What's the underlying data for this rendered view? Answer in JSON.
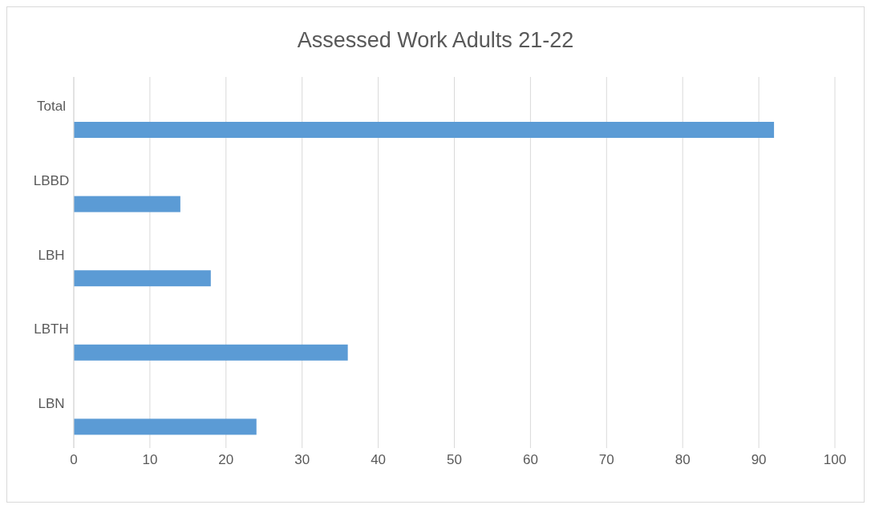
{
  "chart_data": {
    "type": "bar",
    "orientation": "horizontal",
    "title": "Assessed Work Adults 21-22",
    "categories": [
      "Total",
      "LBBD",
      "LBH",
      "LBTH",
      "LBN"
    ],
    "values": [
      92,
      14,
      18,
      36,
      24
    ],
    "color": "#5b9bd5",
    "xlim": [
      0,
      100
    ],
    "xticks": [
      0,
      10,
      20,
      30,
      40,
      50,
      60,
      70,
      80,
      90,
      100
    ],
    "grid": "x",
    "legend": false
  }
}
